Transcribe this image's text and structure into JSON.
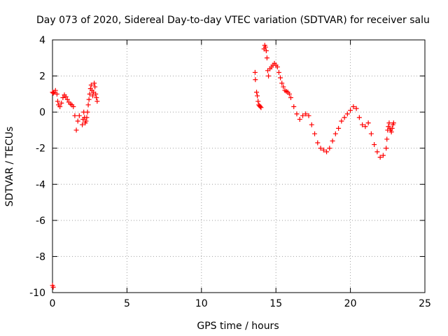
{
  "chart_data": {
    "type": "scatter",
    "title": "Day 073 of 2020, Sidereal Day-to-day VTEC variation (SDTVAR) for receiver salu",
    "xlabel": "GPS time / hours",
    "ylabel": "SDTVAR / TECUs",
    "xlim": [
      0,
      25
    ],
    "ylim": [
      -10,
      4
    ],
    "x_ticks": [
      0,
      5,
      10,
      15,
      20,
      25
    ],
    "y_ticks": [
      -10,
      -8,
      -6,
      -4,
      -2,
      0,
      2,
      4
    ],
    "x_tick_labels": [
      "0",
      "5",
      "10",
      "15",
      "20",
      "25"
    ],
    "y_tick_labels": [
      "-10",
      "-8",
      "-6",
      "-4",
      "-2",
      "0",
      "2",
      "4"
    ],
    "grid": true,
    "legend": "none",
    "marker": "plus",
    "series": [
      {
        "color": "#ff0000",
        "x": [
          0.0,
          0.05,
          0.1,
          0.2,
          0.3,
          0.35,
          0.4,
          0.5,
          0.6,
          0.7,
          0.8,
          0.9,
          1.0,
          1.1,
          1.2,
          1.3,
          1.4,
          1.5,
          1.6,
          1.7,
          1.8,
          2.0,
          2.05,
          2.1,
          2.15,
          2.2,
          2.25,
          2.3,
          2.35,
          2.4,
          2.45,
          2.5,
          2.55,
          2.6,
          2.65,
          2.7,
          2.75,
          2.8,
          2.85,
          2.9,
          2.95,
          3.0,
          0.0,
          0.05,
          13.6,
          13.62,
          13.7,
          13.75,
          13.8,
          13.85,
          13.9,
          13.95,
          14.0,
          14.2,
          14.25,
          14.3,
          14.35,
          14.4,
          14.45,
          14.5,
          14.6,
          14.7,
          14.8,
          14.9,
          15.0,
          15.1,
          15.2,
          15.3,
          15.4,
          15.5,
          15.6,
          15.7,
          15.8,
          15.9,
          16.0,
          16.2,
          16.4,
          16.6,
          16.8,
          17.0,
          17.2,
          17.4,
          17.6,
          17.8,
          18.0,
          18.2,
          18.4,
          18.6,
          18.8,
          19.0,
          19.2,
          19.4,
          19.6,
          19.8,
          20.0,
          20.2,
          20.4,
          20.6,
          20.8,
          21.0,
          21.2,
          21.4,
          21.6,
          21.8,
          22.0,
          22.2,
          22.4,
          22.45,
          22.5,
          22.55,
          22.6,
          22.65,
          22.7,
          22.75,
          22.8,
          22.85,
          22.9
        ],
        "y": [
          1.1,
          1.05,
          1.1,
          1.2,
          1.0,
          0.6,
          0.4,
          0.3,
          0.5,
          0.8,
          0.95,
          0.85,
          0.7,
          0.55,
          0.45,
          0.4,
          0.3,
          -0.2,
          -1.0,
          -0.5,
          -0.2,
          -0.7,
          -0.4,
          0.0,
          -0.3,
          -0.6,
          -0.5,
          -0.3,
          0.0,
          0.4,
          0.7,
          1.0,
          1.3,
          1.5,
          1.2,
          0.9,
          1.1,
          1.6,
          1.4,
          1.0,
          0.8,
          0.6,
          -9.6,
          -9.7,
          2.2,
          1.8,
          1.1,
          0.9,
          0.6,
          0.4,
          0.35,
          0.3,
          0.25,
          3.5,
          3.7,
          3.6,
          3.4,
          3.0,
          2.3,
          2.0,
          2.4,
          2.5,
          2.6,
          2.7,
          2.6,
          2.5,
          2.2,
          1.9,
          1.6,
          1.4,
          1.2,
          1.15,
          1.1,
          1.0,
          0.8,
          0.3,
          -0.1,
          -0.4,
          -0.2,
          -0.1,
          -0.2,
          -0.7,
          -1.2,
          -1.7,
          -2.0,
          -2.1,
          -2.2,
          -2.0,
          -1.6,
          -1.2,
          -0.9,
          -0.5,
          -0.3,
          -0.1,
          0.1,
          0.3,
          0.2,
          -0.3,
          -0.7,
          -0.8,
          -0.6,
          -1.2,
          -1.8,
          -2.2,
          -2.5,
          -2.4,
          -2.0,
          -1.5,
          -1.0,
          -0.8,
          -0.6,
          -0.9,
          -1.0,
          -1.1,
          -0.9,
          -0.7,
          -0.6
        ]
      }
    ]
  }
}
